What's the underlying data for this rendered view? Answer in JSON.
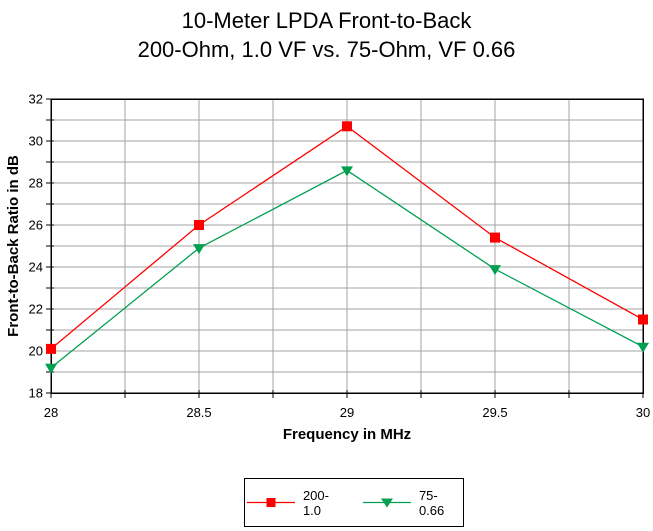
{
  "title": {
    "line1": "10-Meter LPDA Front-to-Back",
    "line2": "200-Ohm, 1.0 VF vs. 75-Ohm, VF 0.66"
  },
  "chart_data": {
    "type": "line",
    "title": "10-Meter LPDA Front-to-Back — 200-Ohm, 1.0 VF vs. 75-Ohm, VF 0.66",
    "xlabel": "Frequency in MHz",
    "ylabel": "Front-to-Back Ratio in dB",
    "x": [
      28,
      28.5,
      29,
      29.5,
      30
    ],
    "series": [
      {
        "name": "200-1.0",
        "color": "#ff0000",
        "marker": "square",
        "values": [
          20.1,
          26.0,
          30.7,
          25.4,
          21.5
        ]
      },
      {
        "name": "75-0.66",
        "color": "#00a050",
        "marker": "triangle-down",
        "values": [
          19.2,
          24.9,
          28.6,
          23.9,
          20.2
        ]
      }
    ],
    "xlim": [
      28,
      30
    ],
    "ylim": [
      18,
      32
    ],
    "x_grid_step": 0.25,
    "y_grid_step": 1,
    "x_tick_labels": [
      "28",
      "28.5",
      "29",
      "29.5",
      "30"
    ],
    "y_tick_labels": [
      "18",
      "20",
      "22",
      "24",
      "26",
      "28",
      "30",
      "32"
    ],
    "grid": true,
    "grid_color": "#a3a3a3",
    "axis_color": "#000000",
    "background": "#ffffff",
    "legend_position": "bottom-center"
  }
}
